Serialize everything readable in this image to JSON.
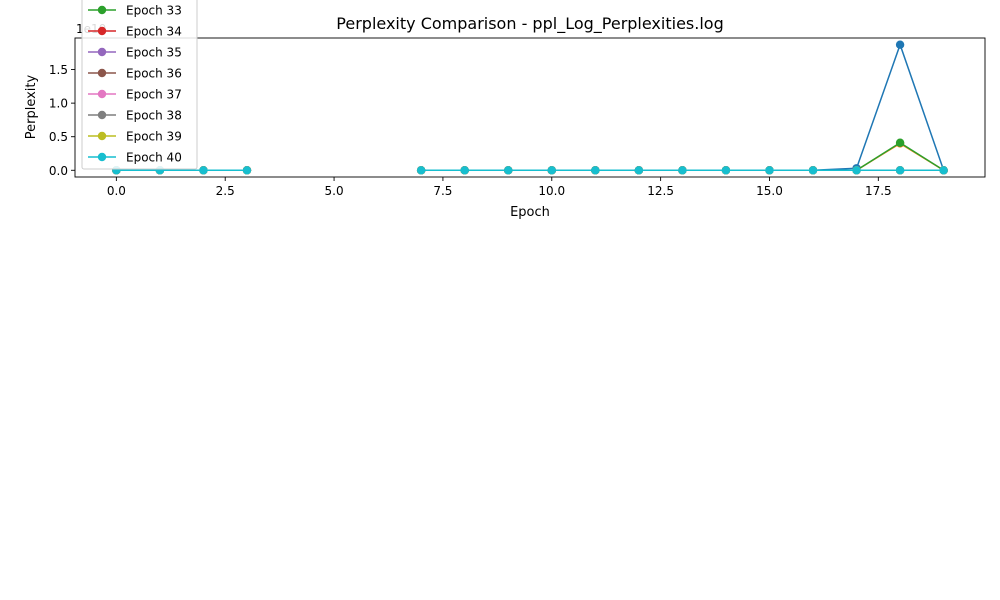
{
  "chart_data": {
    "type": "line",
    "title": "Perplexity Comparison - ppl_Log_Perplexities.log",
    "xlabel": "Epoch",
    "ylabel": "Perplexity",
    "y_offset_text": "1e10",
    "xlim": [
      -0.95,
      19.95
    ],
    "ylim": [
      -0.1,
      1.97
    ],
    "x_ticks": [
      0.0,
      2.5,
      5.0,
      7.5,
      10.0,
      12.5,
      15.0,
      17.5
    ],
    "x_tick_labels": [
      "0.0",
      "2.5",
      "5.0",
      "7.5",
      "10.0",
      "12.5",
      "15.0",
      "17.5"
    ],
    "y_ticks": [
      0.0,
      0.5,
      1.0,
      1.5
    ],
    "y_tick_labels": [
      "0.0",
      "0.5",
      "1.0",
      "1.5"
    ],
    "grid": false,
    "legend_placement": "top-left (clipped above axes)",
    "x": [
      0,
      1,
      2,
      3,
      4,
      5,
      6,
      7,
      8,
      9,
      10,
      11,
      12,
      13,
      14,
      15,
      16,
      17,
      18,
      19
    ],
    "series": [
      {
        "name": "",
        "color": "#1f77b4",
        "legend": false,
        "values": [
          0.0,
          0.0,
          0.0,
          0.0,
          null,
          null,
          null,
          0.0,
          0.0,
          0.0,
          0.0,
          0.0,
          0.0,
          0.0,
          0.0,
          0.0,
          0.0,
          0.03,
          1.87,
          0.0
        ]
      },
      {
        "name": "",
        "color": "#ff7f0e",
        "legend": false,
        "values": [
          0.0,
          0.0,
          0.0,
          0.0,
          null,
          null,
          null,
          0.0,
          0.0,
          0.0,
          0.0,
          0.0,
          0.0,
          0.0,
          0.0,
          0.0,
          0.0,
          0.0,
          0.4,
          0.0
        ]
      },
      {
        "name": "Epoch 33",
        "color": "#2ca02c",
        "legend": true,
        "values": [
          0.0,
          0.0,
          0.0,
          0.0,
          null,
          null,
          null,
          0.0,
          0.0,
          0.0,
          0.0,
          0.0,
          0.0,
          0.0,
          0.0,
          0.0,
          0.0,
          0.0,
          0.41,
          0.0
        ]
      },
      {
        "name": "Epoch 34",
        "color": "#d62728",
        "legend": true,
        "values": [
          0.0,
          0.0,
          0.0,
          0.0,
          null,
          null,
          null,
          0.0,
          0.0,
          0.0,
          0.0,
          0.0,
          0.0,
          0.0,
          0.0,
          0.0,
          0.0,
          0.0,
          0.0,
          0.0
        ]
      },
      {
        "name": "Epoch 35",
        "color": "#9467bd",
        "legend": true,
        "values": [
          0.0,
          0.0,
          0.0,
          0.0,
          null,
          null,
          null,
          0.0,
          0.0,
          0.0,
          0.0,
          0.0,
          0.0,
          0.0,
          0.0,
          0.0,
          0.0,
          0.0,
          0.0,
          0.0
        ]
      },
      {
        "name": "Epoch 36",
        "color": "#8c564b",
        "legend": true,
        "values": [
          0.0,
          0.0,
          0.0,
          0.0,
          null,
          null,
          null,
          0.0,
          0.0,
          0.0,
          0.0,
          0.0,
          0.0,
          0.0,
          0.0,
          0.0,
          0.0,
          0.0,
          0.0,
          0.0
        ]
      },
      {
        "name": "Epoch 37",
        "color": "#e377c2",
        "legend": true,
        "values": [
          0.0,
          0.0,
          0.0,
          0.0,
          null,
          null,
          null,
          0.0,
          0.0,
          0.0,
          0.0,
          0.0,
          0.0,
          0.0,
          0.0,
          0.0,
          0.0,
          0.0,
          0.0,
          0.0
        ]
      },
      {
        "name": "Epoch 38",
        "color": "#7f7f7f",
        "legend": true,
        "values": [
          0.0,
          0.0,
          0.0,
          0.0,
          null,
          null,
          null,
          0.0,
          0.0,
          0.0,
          0.0,
          0.0,
          0.0,
          0.0,
          0.0,
          0.0,
          0.0,
          0.0,
          0.0,
          0.0
        ]
      },
      {
        "name": "Epoch 39",
        "color": "#bcbd22",
        "legend": true,
        "values": [
          0.0,
          0.0,
          0.0,
          0.0,
          null,
          null,
          null,
          0.0,
          0.0,
          0.0,
          0.0,
          0.0,
          0.0,
          0.0,
          0.0,
          0.0,
          0.0,
          0.0,
          0.0,
          0.0
        ]
      },
      {
        "name": "Epoch 40",
        "color": "#17becf",
        "legend": true,
        "values": [
          0.0,
          0.0,
          0.0,
          0.0,
          null,
          null,
          null,
          0.0,
          0.0,
          0.0,
          0.0,
          0.0,
          0.0,
          0.0,
          0.0,
          0.0,
          0.0,
          0.0,
          0.0,
          0.0
        ]
      }
    ]
  }
}
